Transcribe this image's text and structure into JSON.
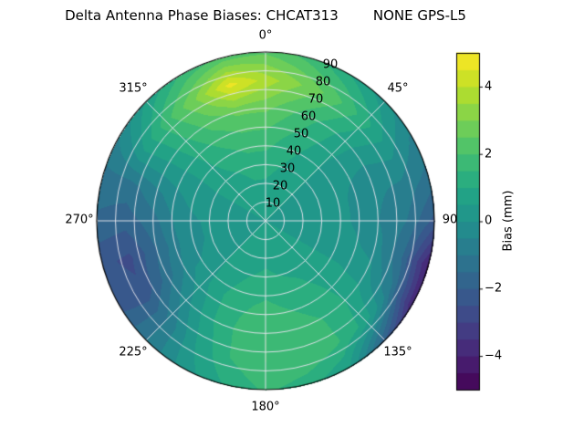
{
  "chart_data": {
    "type": "heatmap",
    "projection": "polar",
    "title": "Delta Antenna Phase Biases: CHCAT313        NONE GPS-L5",
    "azimuth_labels": [
      "0°",
      "45°",
      "90",
      "135°",
      "180°",
      "225°",
      "270°",
      "315°"
    ],
    "azimuth_label_angles_deg": [
      0,
      45,
      90,
      135,
      180,
      225,
      270,
      315
    ],
    "radial_tick_labels": [
      "10",
      "20",
      "30",
      "40",
      "50",
      "60",
      "70",
      "80",
      "90"
    ],
    "radial_label_position_deg": 22.5,
    "grid_on": true,
    "colorbar": {
      "label": "Bias (mm)",
      "ticks": [
        "4",
        "2",
        "0",
        "−2",
        "−4"
      ],
      "tick_values": [
        4,
        2,
        0,
        -2,
        -4
      ],
      "vmin": -5,
      "vmax": 5,
      "level_step": 0.5,
      "position": "right"
    },
    "colormap": {
      "name": "viridis",
      "stops": [
        [
          0.0,
          "#440154"
        ],
        [
          0.1,
          "#482475"
        ],
        [
          0.2,
          "#414487"
        ],
        [
          0.3,
          "#355f8d"
        ],
        [
          0.4,
          "#2a788e"
        ],
        [
          0.5,
          "#21918c"
        ],
        [
          0.6,
          "#22a884"
        ],
        [
          0.7,
          "#44bf70"
        ],
        [
          0.8,
          "#7ad151"
        ],
        [
          0.9,
          "#bddf26"
        ],
        [
          1.0,
          "#fde725"
        ]
      ]
    },
    "grid": {
      "azimuth_deg": [
        0,
        15,
        30,
        45,
        60,
        75,
        90,
        105,
        120,
        135,
        150,
        165,
        180,
        195,
        210,
        225,
        240,
        255,
        270,
        285,
        300,
        315,
        330,
        345
      ],
      "radius": [
        0,
        15,
        30,
        45,
        60,
        75,
        90
      ],
      "bias_mm": [
        [
          0.5,
          0.5,
          0.5,
          0.5,
          0.5,
          0.5,
          0.5,
          0.5,
          0.5,
          0.5,
          0.5,
          0.5,
          0.5,
          0.5,
          0.5,
          0.5,
          0.5,
          0.5,
          0.5,
          0.5,
          0.5,
          0.5,
          0.5,
          0.5
        ],
        [
          0.8,
          0.7,
          0.6,
          0.5,
          0.4,
          0.4,
          0.4,
          0.4,
          0.5,
          0.6,
          0.7,
          0.7,
          0.8,
          0.7,
          0.6,
          0.5,
          0.4,
          0.3,
          0.3,
          0.4,
          0.5,
          0.6,
          0.7,
          0.8
        ],
        [
          1.2,
          1.0,
          0.7,
          0.5,
          0.3,
          0.2,
          0.2,
          0.3,
          0.5,
          0.7,
          0.9,
          1.0,
          1.1,
          1.0,
          0.8,
          0.5,
          0.2,
          0.1,
          0.1,
          0.3,
          0.5,
          0.8,
          1.0,
          1.2
        ],
        [
          1.8,
          1.4,
          1.0,
          0.5,
          0.1,
          0.0,
          0.0,
          0.2,
          0.5,
          0.9,
          1.2,
          1.4,
          1.6,
          1.4,
          1.0,
          0.4,
          -0.1,
          -0.3,
          -0.2,
          0.0,
          0.4,
          1.0,
          1.5,
          1.8
        ],
        [
          2.6,
          2.0,
          1.4,
          0.7,
          0.0,
          -0.4,
          -0.5,
          -0.2,
          0.3,
          1.0,
          1.5,
          1.8,
          2.0,
          1.6,
          0.9,
          -0.2,
          -1.2,
          -1.5,
          -1.2,
          -0.6,
          0.4,
          1.4,
          2.2,
          2.6
        ],
        [
          3.8,
          3.0,
          2.2,
          1.2,
          0.2,
          -0.6,
          -1.0,
          -1.5,
          -0.8,
          0.8,
          1.6,
          2.0,
          2.0,
          1.5,
          0.5,
          -1.0,
          -2.4,
          -2.6,
          -1.8,
          -1.2,
          0.5,
          1.8,
          3.0,
          4.7
        ],
        [
          2.4,
          1.8,
          1.0,
          0.2,
          -0.6,
          -1.2,
          -2.2,
          -4.2,
          -4.0,
          -2.0,
          0.5,
          1.2,
          1.6,
          1.0,
          0.2,
          -1.0,
          -2.2,
          -2.4,
          -1.6,
          -1.2,
          -0.5,
          0.6,
          1.6,
          2.2
        ]
      ]
    }
  }
}
